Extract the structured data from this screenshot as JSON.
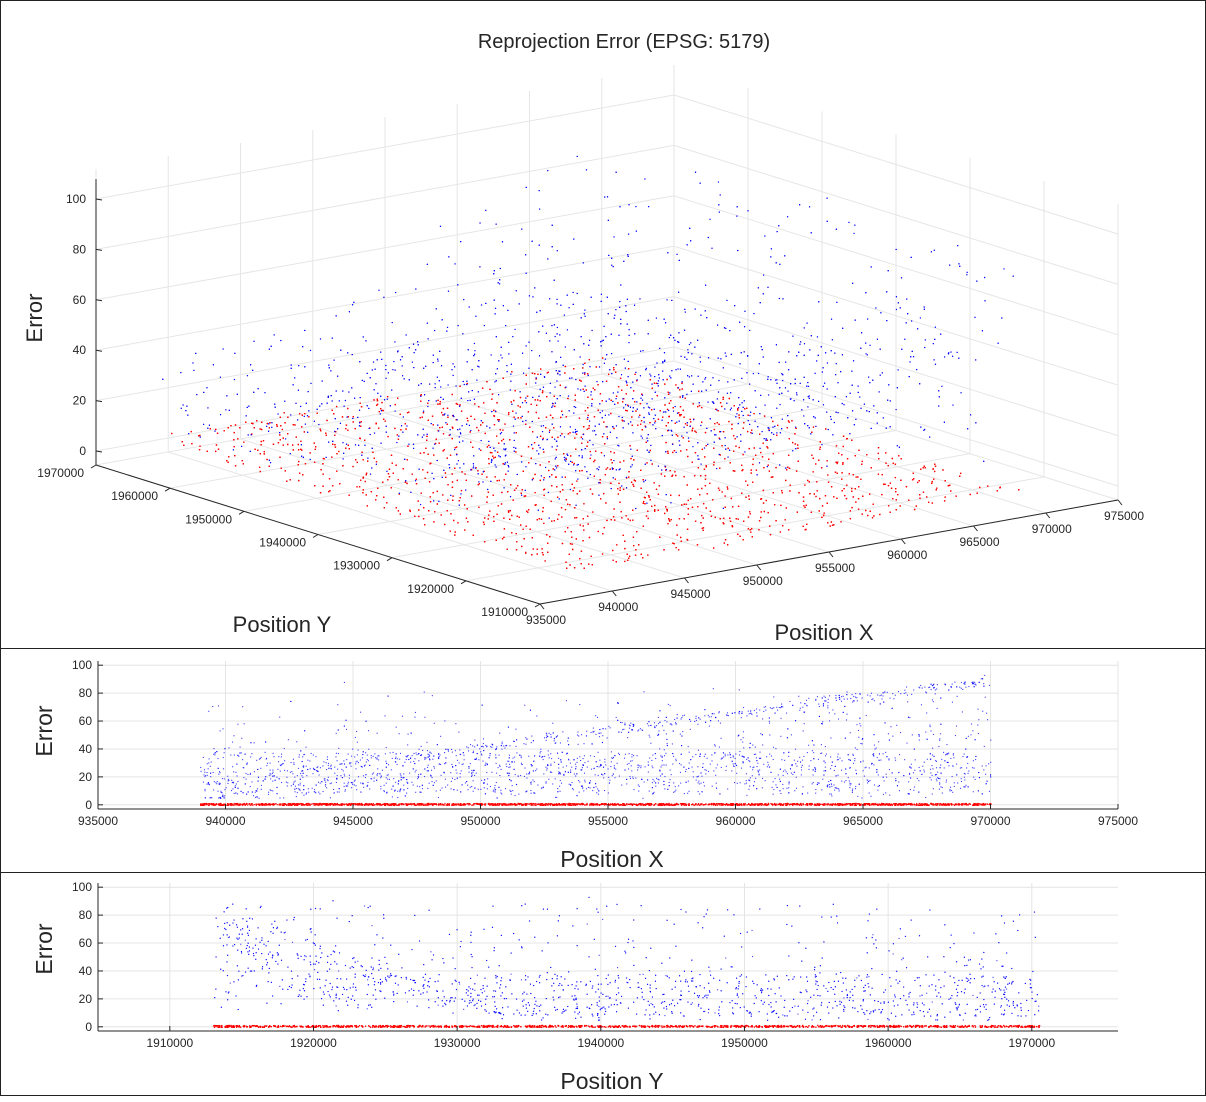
{
  "figure": {
    "panels": 3
  },
  "chart_data": [
    {
      "type": "scatter3d",
      "title": "Reprojection Error (EPSG: 5179)",
      "xlabel": "Position X",
      "ylabel": "Position Y",
      "zlabel": "Error",
      "xlim": [
        935000,
        975000
      ],
      "ylim": [
        1910000,
        1970000
      ],
      "zlim": [
        0,
        100
      ],
      "xticks": [
        "935000",
        "940000",
        "945000",
        "950000",
        "955000",
        "960000",
        "965000",
        "970000",
        "975000"
      ],
      "yticks": [
        "1910000",
        "1920000",
        "1930000",
        "1940000",
        "1950000",
        "1960000",
        "1970000"
      ],
      "zticks": [
        "0",
        "20",
        "40",
        "60",
        "80",
        "100"
      ],
      "grid": true,
      "series": [
        {
          "color": "#0000ff",
          "error_range": [
            5,
            95
          ],
          "points_approx": 9000
        },
        {
          "color": "#ff0000",
          "error_range": [
            0,
            2
          ],
          "points_approx": 7000
        }
      ]
    },
    {
      "type": "scatter",
      "xlabel": "Position X",
      "ylabel": "Error",
      "xlim": [
        935000,
        975000
      ],
      "ylim": [
        -3,
        103
      ],
      "xticks": [
        "935000",
        "940000",
        "945000",
        "950000",
        "955000",
        "960000",
        "965000",
        "970000",
        "975000"
      ],
      "yticks": [
        "0",
        "20",
        "40",
        "60",
        "80",
        "100"
      ],
      "grid": true,
      "series": [
        {
          "color": "#0000ff",
          "x_range": [
            939000,
            970000
          ],
          "error_range": [
            5,
            100
          ]
        },
        {
          "color": "#ff0000",
          "x_range": [
            939000,
            970000
          ],
          "error_range": [
            0,
            1.5
          ]
        }
      ]
    },
    {
      "type": "scatter",
      "xlabel": "Position Y",
      "ylabel": "Error",
      "xlim": [
        1905000,
        1976000
      ],
      "ylim": [
        -3,
        103
      ],
      "xticks": [
        "1910000",
        "1920000",
        "1930000",
        "1940000",
        "1950000",
        "1960000",
        "1970000"
      ],
      "yticks": [
        "0",
        "20",
        "40",
        "60",
        "80",
        "100"
      ],
      "grid": true,
      "series": [
        {
          "color": "#0000ff",
          "x_range": [
            1913000,
            1970500
          ],
          "error_range": [
            5,
            100
          ]
        },
        {
          "color": "#ff0000",
          "x_range": [
            1913000,
            1970500
          ],
          "error_range": [
            0,
            1.5
          ]
        }
      ]
    }
  ]
}
